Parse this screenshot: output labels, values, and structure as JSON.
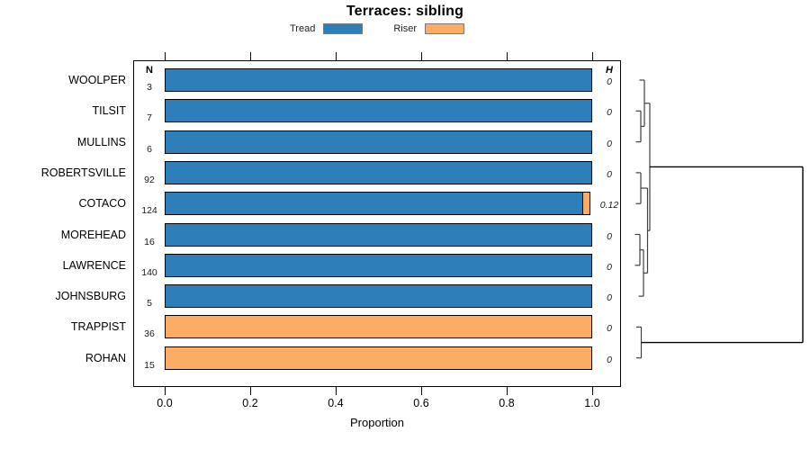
{
  "title": "Terraces: sibling",
  "legend": {
    "items": [
      {
        "label": "Tread",
        "color": "#2e7fb9"
      },
      {
        "label": "Riser",
        "color": "#fbad63"
      }
    ]
  },
  "columns": {
    "n_header": "N",
    "h_header": "H"
  },
  "x_axis": {
    "label": "Proportion",
    "ticks": [
      0.0,
      0.2,
      0.4,
      0.6,
      0.8,
      1.0
    ],
    "tick_labels": [
      "0.0",
      "0.2",
      "0.4",
      "0.6",
      "0.8",
      "1.0"
    ],
    "range": [
      0,
      1
    ]
  },
  "chart_data": {
    "type": "bar",
    "orientation": "horizontal",
    "stacked": true,
    "title": "Terraces: sibling",
    "xlabel": "Proportion",
    "xlim": [
      0,
      1
    ],
    "grid": false,
    "legend_position": "top-center",
    "categories": [
      "WOOLPER",
      "TILSIT",
      "MULLINS",
      "ROBERTSVILLE",
      "COTACO",
      "MOREHEAD",
      "LAWRENCE",
      "JOHNSBURG",
      "TRAPPIST",
      "ROHAN"
    ],
    "n_values": [
      3,
      7,
      6,
      92,
      124,
      16,
      140,
      5,
      36,
      15
    ],
    "h_values": [
      "0",
      "0",
      "0",
      "0",
      "0.12",
      "0",
      "0",
      "0",
      "0",
      "0"
    ],
    "series": [
      {
        "name": "Tread",
        "color": "#2e7fb9",
        "values": [
          1,
          1,
          1,
          1,
          0.98,
          1,
          1,
          1,
          0,
          0
        ]
      },
      {
        "name": "Riser",
        "color": "#fbad63",
        "values": [
          0,
          0,
          0,
          0,
          0.02,
          0,
          0,
          0,
          1,
          1
        ]
      }
    ],
    "dendrogram": {
      "side": "right",
      "merges": [
        {
          "a": "TILSIT",
          "b": "MULLINS",
          "x": 712
        },
        {
          "a": "WOOLPER",
          "b": "#0",
          "x": 716
        },
        {
          "a": "ROBERTSVILLE",
          "b": "COTACO",
          "x": 712
        },
        {
          "a": "MOREHEAD",
          "b": "LAWRENCE",
          "x": 711
        },
        {
          "a": "#3",
          "b": "JOHNSBURG",
          "x": 715
        },
        {
          "a": "#2",
          "b": "#4",
          "x": 719.5
        },
        {
          "a": "#1",
          "b": "#5",
          "x": 722
        },
        {
          "a": "TRAPPIST",
          "b": "ROHAN",
          "x": 712.5
        },
        {
          "a": "#6",
          "b": "#7",
          "x": 892
        }
      ]
    }
  }
}
